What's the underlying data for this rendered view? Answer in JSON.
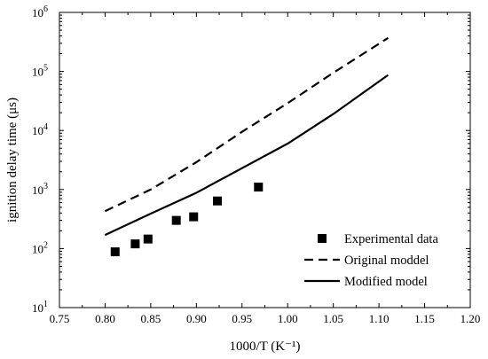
{
  "chart_data": {
    "type": "line",
    "xlabel": "1000/T (K⁻¹)",
    "ylabel": "ignition delay time (μs)",
    "xlim": [
      0.75,
      1.2
    ],
    "ylim": [
      10,
      1000000
    ],
    "yscale": "log",
    "grid": false,
    "legend_position": "bottom-right",
    "x_ticks": [
      {
        "value": 0.75,
        "label": "0.75"
      },
      {
        "value": 0.8,
        "label": "0.80"
      },
      {
        "value": 0.85,
        "label": "0.85"
      },
      {
        "value": 0.9,
        "label": "0.90"
      },
      {
        "value": 0.95,
        "label": "0.95"
      },
      {
        "value": 1.0,
        "label": "1.00"
      },
      {
        "value": 1.05,
        "label": "1.05"
      },
      {
        "value": 1.1,
        "label": "1.10"
      },
      {
        "value": 1.15,
        "label": "1.15"
      },
      {
        "value": 1.2,
        "label": "1.20"
      }
    ],
    "y_ticks": [
      {
        "value": 10,
        "base": "10",
        "exp": "1"
      },
      {
        "value": 100,
        "base": "10",
        "exp": "2"
      },
      {
        "value": 1000,
        "base": "10",
        "exp": "3"
      },
      {
        "value": 10000,
        "base": "10",
        "exp": "4"
      },
      {
        "value": 100000,
        "base": "10",
        "exp": "5"
      },
      {
        "value": 1000000,
        "base": "10",
        "exp": "6"
      }
    ],
    "series": [
      {
        "name": "Experimental data",
        "style": "square-markers",
        "color": "#000000",
        "points": [
          {
            "x": 0.811,
            "y": 88
          },
          {
            "x": 0.833,
            "y": 120
          },
          {
            "x": 0.847,
            "y": 145
          },
          {
            "x": 0.878,
            "y": 300
          },
          {
            "x": 0.897,
            "y": 345
          },
          {
            "x": 0.923,
            "y": 640
          },
          {
            "x": 0.968,
            "y": 1100
          }
        ]
      },
      {
        "name": "Original moddel",
        "style": "dashed",
        "color": "#000000",
        "points": [
          {
            "x": 0.8,
            "y": 430
          },
          {
            "x": 0.85,
            "y": 1000
          },
          {
            "x": 0.9,
            "y": 2900
          },
          {
            "x": 0.95,
            "y": 9500
          },
          {
            "x": 1.0,
            "y": 29000
          },
          {
            "x": 1.05,
            "y": 95000
          },
          {
            "x": 1.11,
            "y": 370000
          }
        ]
      },
      {
        "name": "Modified model",
        "style": "solid",
        "color": "#000000",
        "points": [
          {
            "x": 0.8,
            "y": 170
          },
          {
            "x": 0.85,
            "y": 390
          },
          {
            "x": 0.9,
            "y": 880
          },
          {
            "x": 0.95,
            "y": 2300
          },
          {
            "x": 1.0,
            "y": 6000
          },
          {
            "x": 1.05,
            "y": 19000
          },
          {
            "x": 1.11,
            "y": 87000
          }
        ]
      }
    ]
  }
}
